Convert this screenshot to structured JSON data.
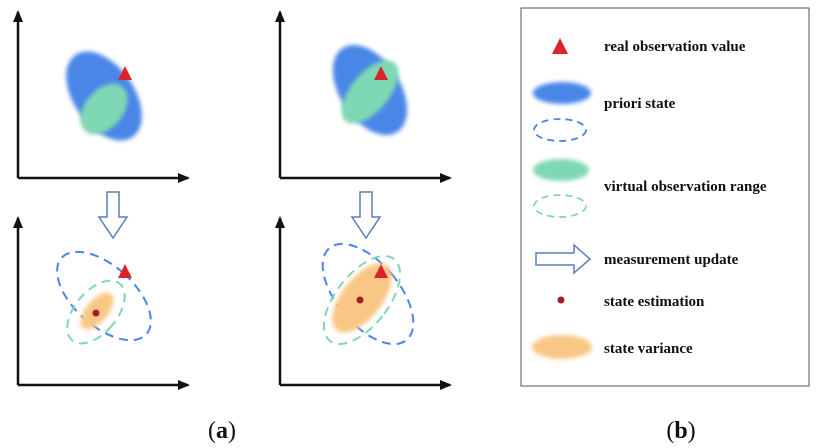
{
  "colors": {
    "prior": "#4a86e8",
    "virtual": "#7fd8b4",
    "variance": "#f9c785",
    "observation": "#d9262e",
    "estimate": "#a31d2b",
    "arrow_stroke": "#5b7fb8",
    "axis": "#111111"
  },
  "legend": {
    "items": [
      {
        "key": "observation",
        "label": "real observation value"
      },
      {
        "key": "prior",
        "label": "priori state"
      },
      {
        "key": "prior_dashed",
        "label": ""
      },
      {
        "key": "virtual",
        "label": "virtual observation range"
      },
      {
        "key": "virtual_dashed",
        "label": ""
      },
      {
        "key": "update",
        "label": "measurement update"
      },
      {
        "key": "estimate",
        "label": "state estimation"
      },
      {
        "key": "variance",
        "label": "state variance"
      }
    ]
  },
  "captions": {
    "a": {
      "open": "(",
      "letter": "a",
      "close": ")"
    },
    "b": {
      "open": "(",
      "letter": "b",
      "close": ")"
    }
  }
}
